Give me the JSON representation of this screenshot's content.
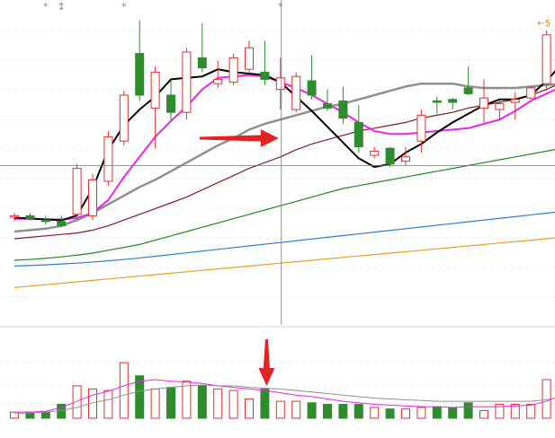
{
  "chart_data": {
    "type": "candlestick",
    "title": "",
    "colors": {
      "up": "#e03030",
      "down": "#2e8b2e",
      "ma_fast": "#000000",
      "ma_mid": "#ee22ee",
      "ma_gray": "#909090",
      "ma_darkred": "#8b1a1a",
      "ma_green": "#1e8c1e",
      "ma_blue": "#2a7fd0",
      "ma_orange": "#e8a020",
      "marker": "#8a8a8a",
      "arrow": "#e02424",
      "grid": "#c8c8c8"
    },
    "price_range": [
      0,
      100
    ],
    "volume_range": [
      0,
      100
    ],
    "markers": [
      {
        "index": 2,
        "symbol": "*"
      },
      {
        "index": 3,
        "symbol": "↕"
      },
      {
        "index": 7,
        "symbol": "*"
      },
      {
        "index": 17,
        "symbol": "*"
      },
      {
        "index": 35,
        "symbol": "*"
      }
    ],
    "top_right_label": "←5",
    "candles": [
      {
        "o": 30.0,
        "h": 31.5,
        "l": 28.5,
        "c": 30.5
      },
      {
        "o": 30.5,
        "h": 31.5,
        "l": 29.0,
        "c": 29.5
      },
      {
        "o": 29.0,
        "h": 30.5,
        "l": 27.5,
        "c": 28.5
      },
      {
        "o": 28.5,
        "h": 30.5,
        "l": 26.5,
        "c": 27.0
      },
      {
        "o": 31.0,
        "h": 48.5,
        "l": 30.0,
        "c": 47.0
      },
      {
        "o": 30.5,
        "h": 45.0,
        "l": 29.0,
        "c": 43.0
      },
      {
        "o": 42.5,
        "h": 60.0,
        "l": 41.0,
        "c": 58.0
      },
      {
        "o": 56.5,
        "h": 74.0,
        "l": 55.0,
        "c": 72.5
      },
      {
        "o": 87.0,
        "h": 98.5,
        "l": 70.5,
        "c": 72.5
      },
      {
        "o": 68.0,
        "h": 82.5,
        "l": 54.0,
        "c": 80.5
      },
      {
        "o": 72.5,
        "h": 77.5,
        "l": 63.5,
        "c": 66.5
      },
      {
        "o": 66.5,
        "h": 89.0,
        "l": 64.0,
        "c": 87.5
      },
      {
        "o": 85.5,
        "h": 97.5,
        "l": 80.5,
        "c": 82.0
      },
      {
        "o": 76.5,
        "h": 84.5,
        "l": 75.0,
        "c": 78.0
      },
      {
        "o": 77.0,
        "h": 87.0,
        "l": 76.0,
        "c": 85.5
      },
      {
        "o": 81.5,
        "h": 91.5,
        "l": 80.0,
        "c": 89.0
      },
      {
        "o": 80.5,
        "h": 91.5,
        "l": 76.0,
        "c": 78.0
      },
      {
        "o": 74.5,
        "h": 85.5,
        "l": 67.5,
        "c": 78.5
      },
      {
        "o": 67.5,
        "h": 80.5,
        "l": 66.5,
        "c": 79.0
      },
      {
        "o": 77.5,
        "h": 86.5,
        "l": 71.0,
        "c": 72.5
      },
      {
        "o": 69.5,
        "h": 74.5,
        "l": 67.0,
        "c": 68.0
      },
      {
        "o": 70.5,
        "h": 75.5,
        "l": 62.5,
        "c": 64.5
      },
      {
        "o": 63.0,
        "h": 69.0,
        "l": 52.5,
        "c": 54.5
      },
      {
        "o": 51.5,
        "h": 54.5,
        "l": 50.5,
        "c": 53.0
      },
      {
        "o": 54.0,
        "h": 54.5,
        "l": 47.5,
        "c": 48.5
      },
      {
        "o": 49.5,
        "h": 54.5,
        "l": 48.0,
        "c": 51.0
      },
      {
        "o": 56.5,
        "h": 67.5,
        "l": 52.5,
        "c": 65.5
      },
      {
        "o": 70.5,
        "h": 72.0,
        "l": 66.0,
        "c": 70.0
      },
      {
        "o": 71.0,
        "h": 71.5,
        "l": 67.5,
        "c": 70.0
      },
      {
        "o": 75.0,
        "h": 82.5,
        "l": 72.5,
        "c": 73.0
      },
      {
        "o": 68.0,
        "h": 78.0,
        "l": 63.0,
        "c": 71.5
      },
      {
        "o": 67.5,
        "h": 71.0,
        "l": 63.5,
        "c": 69.5
      },
      {
        "o": 70.0,
        "h": 73.5,
        "l": 64.0,
        "c": 71.0
      },
      {
        "o": 71.5,
        "h": 75.5,
        "l": 71.0,
        "c": 75.0
      },
      {
        "o": 76.5,
        "h": 95.0,
        "l": 74.0,
        "c": 93.5
      },
      {
        "o": 96.0,
        "h": 97.5,
        "l": 81.5,
        "c": 83.5
      }
    ],
    "moving_averages": [
      {
        "color_key": "ma_fast",
        "width": 2.0,
        "values": [
          29.8,
          29.6,
          29.2,
          28.9,
          30.6,
          40.0,
          53.5,
          62.0,
          67.5,
          72.0,
          78.0,
          78.5,
          79.0,
          81.5,
          80.5,
          80.0,
          79.5,
          77.0,
          72.0,
          67.0,
          61.5,
          56.0,
          50.5,
          47.5,
          48.5,
          52.5,
          55.5,
          59.5,
          63.0,
          66.0,
          69.0,
          71.0,
          71.0,
          72.5,
          77.5,
          83.5
        ]
      },
      {
        "color_key": "ma_mid",
        "width": 2.0,
        "values": [
          29.5,
          29.4,
          29.3,
          29.2,
          29.7,
          31.5,
          36.0,
          44.0,
          51.0,
          58.0,
          63.5,
          68.5,
          74.5,
          78.5,
          79.0,
          79.5,
          79.0,
          77.0,
          75.0,
          72.5,
          69.5,
          66.5,
          63.0,
          60.0,
          59.0,
          59.0,
          59.5,
          60.0,
          60.5,
          61.0,
          62.5,
          64.0,
          67.0,
          70.5,
          73.0,
          75.5
        ]
      },
      {
        "color_key": "ma_gray",
        "width": 2.5,
        "values": [
          25.0,
          25.5,
          26.0,
          27.0,
          29.0,
          31.5,
          34.5,
          37.5,
          40.5,
          43.0,
          46.0,
          49.0,
          52.0,
          55.0,
          57.5,
          60.5,
          62.5,
          64.0,
          65.5,
          67.0,
          68.5,
          69.5,
          71.0,
          72.5,
          74.0,
          75.5,
          76.5,
          76.5,
          76.5,
          75.5,
          75.0,
          75.0,
          75.0,
          75.5,
          76.0,
          76.5
        ]
      },
      {
        "color_key": "ma_darkred",
        "width": 1.2,
        "values": [
          22.5,
          23.0,
          23.5,
          24.0,
          24.5,
          25.5,
          27.0,
          29.0,
          31.0,
          33.0,
          35.0,
          37.0,
          39.5,
          42.0,
          44.5,
          47.0,
          49.0,
          51.0,
          53.5,
          55.5,
          57.0,
          58.5,
          60.0,
          61.0,
          62.0,
          63.0,
          64.5,
          65.5,
          66.5,
          68.0,
          69.0,
          70.0,
          71.0,
          72.5,
          74.5,
          77.0
        ]
      },
      {
        "color_key": "ma_green",
        "width": 1.2,
        "values": [
          15.0,
          15.3,
          15.7,
          16.2,
          16.8,
          17.5,
          18.5,
          19.5,
          20.5,
          22.0,
          23.5,
          25.0,
          26.5,
          28.0,
          29.5,
          31.0,
          32.5,
          34.0,
          35.5,
          37.0,
          38.5,
          40.0,
          41.0,
          42.0,
          43.0,
          44.0,
          45.0,
          46.0,
          47.0,
          48.0,
          49.0,
          50.0,
          51.0,
          52.0,
          53.0,
          54.0
        ]
      },
      {
        "color_key": "ma_blue",
        "width": 1.2,
        "values": [
          13.0,
          13.2,
          13.4,
          13.7,
          14.0,
          14.4,
          14.8,
          15.3,
          15.8,
          16.4,
          17.0,
          17.6,
          18.2,
          18.8,
          19.4,
          20.0,
          20.6,
          21.2,
          21.8,
          22.4,
          23.0,
          23.6,
          24.2,
          24.8,
          25.4,
          26.0,
          26.6,
          27.2,
          27.8,
          28.4,
          29.0,
          29.6,
          30.2,
          30.8,
          31.4,
          32.0
        ]
      },
      {
        "color_key": "ma_orange",
        "width": 1.2,
        "values": [
          5.5,
          6.0,
          6.5,
          7.0,
          7.5,
          8.0,
          8.5,
          9.0,
          9.5,
          10.0,
          10.5,
          11.0,
          11.5,
          12.0,
          12.5,
          13.0,
          13.5,
          14.0,
          14.5,
          15.0,
          15.5,
          16.0,
          16.5,
          17.0,
          17.5,
          18.0,
          18.5,
          19.0,
          19.5,
          20.0,
          20.5,
          21.0,
          21.5,
          22.0,
          22.5,
          23.0
        ]
      }
    ],
    "volume": [
      8,
      8,
      8,
      18,
      42,
      38,
      36,
      72,
      55,
      38,
      40,
      48,
      42,
      38,
      36,
      25,
      38,
      22,
      22,
      20,
      18,
      18,
      18,
      14,
      12,
      12,
      14,
      15,
      14,
      20,
      10,
      18,
      18,
      18,
      50,
      58
    ],
    "volume_ma": [
      {
        "color_key": "ma_mid",
        "values": [
          8,
          8,
          9,
          14,
          22,
          30,
          35,
          42,
          48,
          50,
          48,
          47,
          45,
          42,
          40,
          38,
          36,
          33,
          30,
          28,
          25,
          22,
          20,
          18,
          17,
          16,
          15,
          15,
          14,
          15,
          15,
          15,
          16,
          17,
          22,
          30
        ]
      },
      {
        "color_key": "ma_gray",
        "values": [
          6,
          7,
          8,
          10,
          14,
          20,
          24,
          30,
          35,
          38,
          40,
          42,
          43,
          42,
          42,
          40,
          39,
          38,
          36,
          34,
          32,
          30,
          28,
          26,
          25,
          24,
          23,
          22,
          22,
          22,
          22,
          22,
          22,
          22,
          24,
          28
        ]
      }
    ],
    "crosshair": {
      "index": 17,
      "price": 48.0
    },
    "annotations": [
      {
        "type": "arrow",
        "direction": "right",
        "target_index": 17
      },
      {
        "type": "arrow",
        "direction": "down",
        "target_index": 16
      }
    ]
  }
}
